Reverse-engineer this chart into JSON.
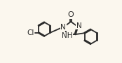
{
  "bg_color": "#fbf7ee",
  "bond_color": "#2a2a2a",
  "bond_lw": 1.3,
  "font_size": 7.5,
  "figsize": [
    1.74,
    0.9
  ],
  "dpi": 100,
  "xlim": [
    0,
    10.5
  ],
  "ylim": [
    0,
    5.5
  ]
}
